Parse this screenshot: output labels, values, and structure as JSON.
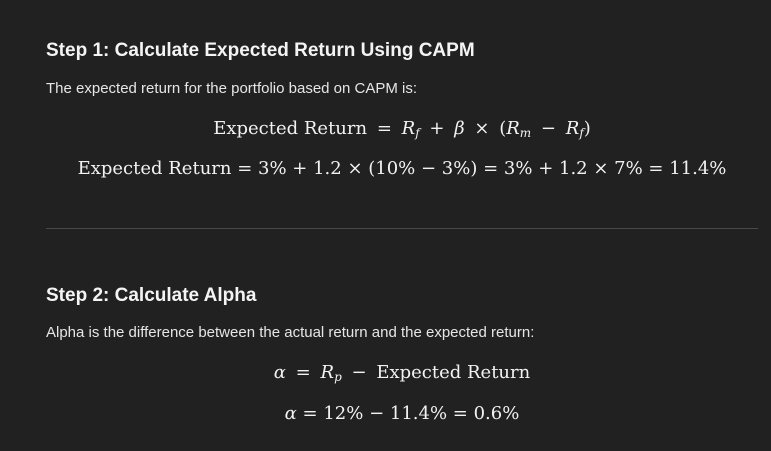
{
  "step1": {
    "heading": "Step 1: Calculate Expected Return Using CAPM",
    "intro": "The expected return for the portfolio based on CAPM is:",
    "formula": {
      "lhs": "Expected Return",
      "eq": "=",
      "r": "R",
      "f": "f",
      "plus": "+",
      "beta": "β",
      "times": "×",
      "open": "(",
      "m": "m",
      "minus": "−",
      "close": ")"
    },
    "calculation": {
      "lhs": "Expected Return",
      "text": "= 3% + 1.2 × (10% − 3%) = 3% + 1.2 × 7% = 11.4%"
    }
  },
  "step2": {
    "heading": "Step 2: Calculate Alpha",
    "intro": "Alpha is the difference between the actual return and the expected return:",
    "formula": {
      "alpha": "α",
      "eq": "=",
      "r": "R",
      "p": "p",
      "minus": "−",
      "rhs": "Expected Return"
    },
    "calculation": {
      "alpha": "α",
      "text": "= 12% − 11.4% = 0.6%"
    }
  }
}
